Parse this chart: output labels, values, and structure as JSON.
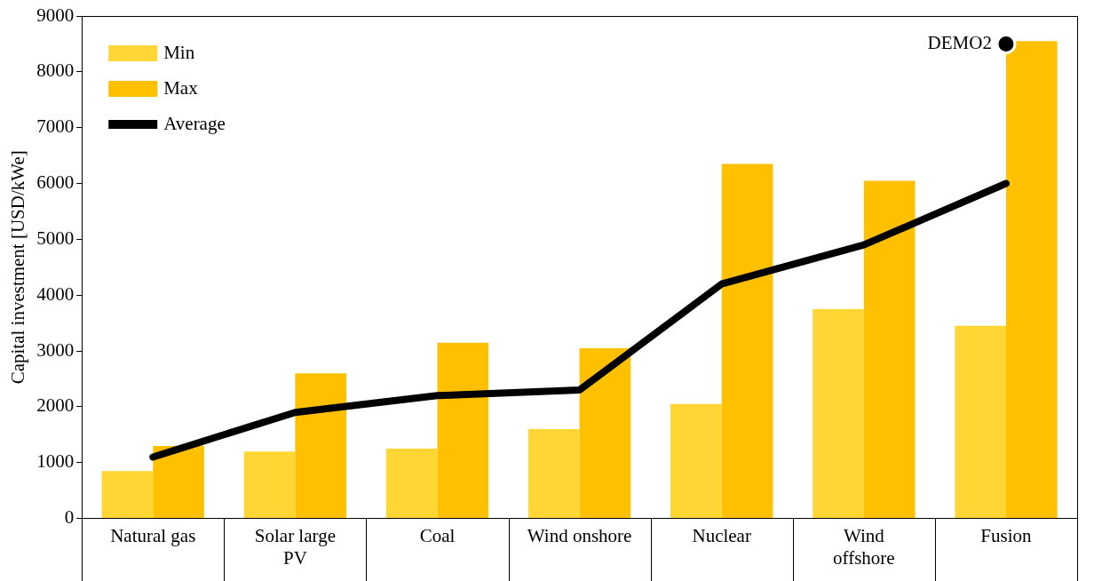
{
  "chart_data": {
    "type": "bar",
    "ylabel": "Capital investment [USD/kWe]",
    "categories": [
      "Natural gas",
      "Solar large PV",
      "Coal",
      "Wind onshore",
      "Nuclear",
      "Wind offshore",
      "Fusion"
    ],
    "series": [
      {
        "name": "Min",
        "color": "#ffd633",
        "values": [
          850,
          1200,
          1250,
          1600,
          2050,
          3750,
          3450
        ]
      },
      {
        "name": "Max",
        "color": "#ffc000",
        "values": [
          1300,
          2600,
          3150,
          3050,
          6350,
          6050,
          8550
        ]
      },
      {
        "name": "Average",
        "type": "line",
        "color": "#000000",
        "values": [
          1100,
          1900,
          2200,
          2300,
          4200,
          4900,
          6000
        ]
      },
      {
        "type": "scatter",
        "color": "#000000",
        "x": [
          "Fusion"
        ],
        "values": [
          8500
        ],
        "marker": "circle"
      }
    ],
    "annotations": [
      {
        "text": "DEMO2",
        "x": "Fusion",
        "y": 8500
      }
    ],
    "ylim": [
      0,
      9000
    ],
    "yticks": [
      0,
      1000,
      2000,
      3000,
      4000,
      5000,
      6000,
      7000,
      8000,
      9000
    ],
    "grid": false,
    "legend": "top left"
  }
}
